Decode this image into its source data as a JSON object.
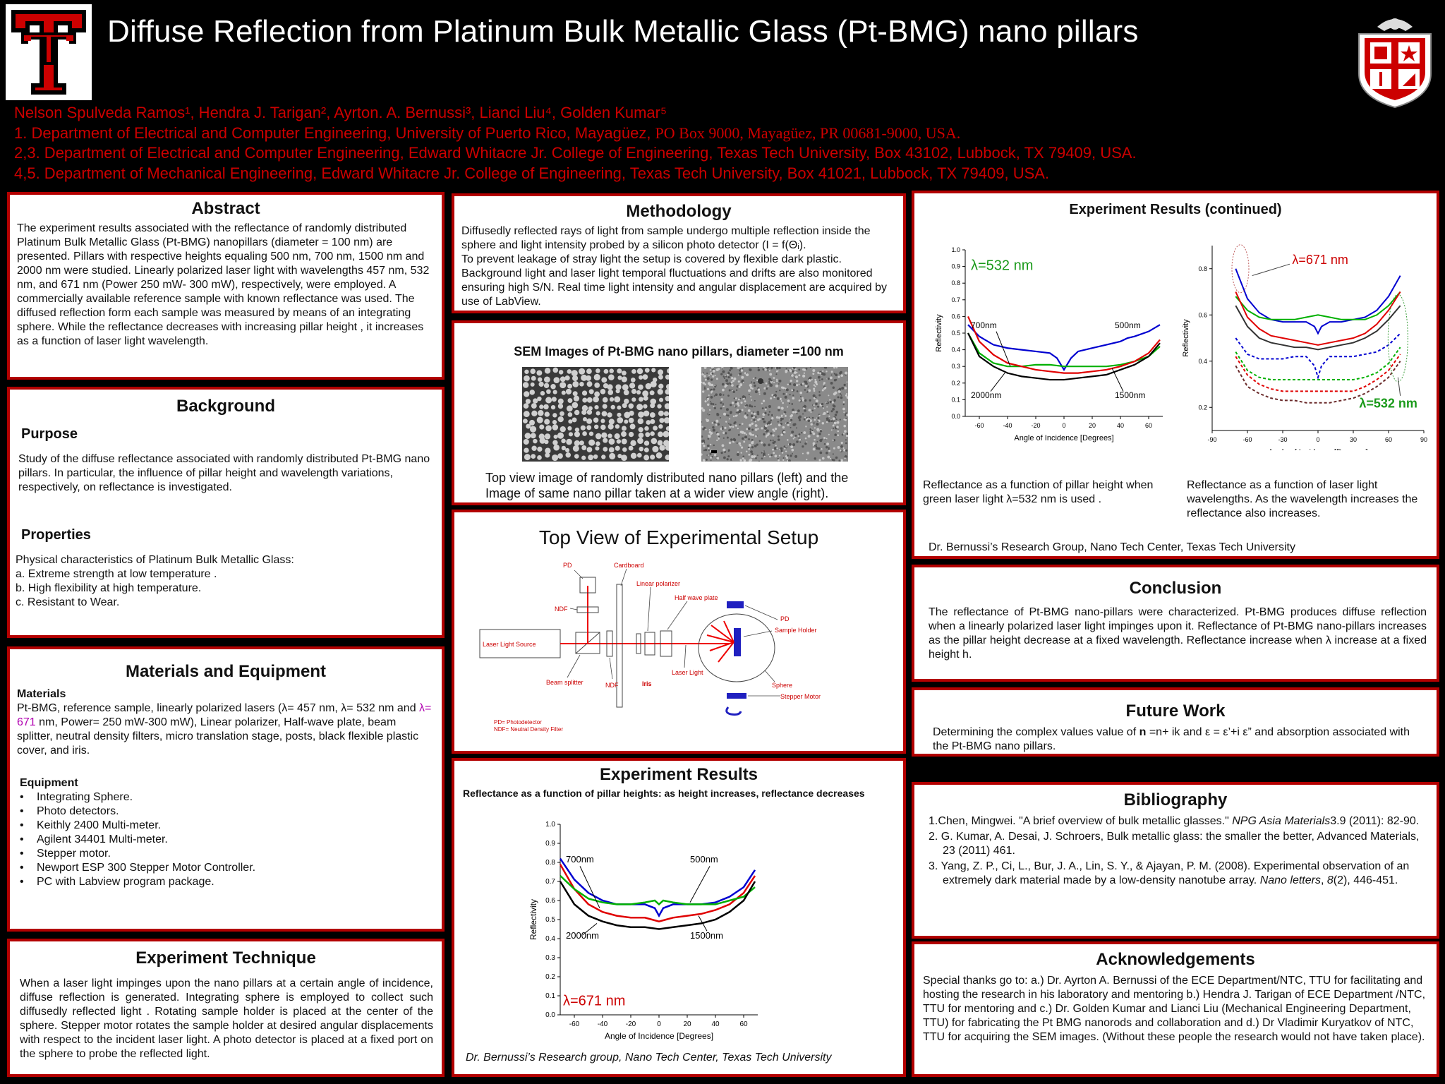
{
  "header": {
    "title": "Diffuse Reflection from Platinum Bulk Metallic Glass (Pt-BMG) nano pillars",
    "authors": "Nelson Spulveda Ramos¹,  Hendra  J. Tarigan², Ayrton. A. Bernussi³, Lianci Liu⁴, Golden Kumar⁵",
    "aff1a": "1. Department of Electrical and Computer Engineering, University of Puerto Rico, Mayagüez, ",
    "aff1b": "PO Box 9000, Mayagüez, PR 00681-9000, USA.",
    "aff2": "2,3.  Department of Electrical and Computer Engineering, Edward Whitacre  Jr. College of Engineering, Texas Tech University, Box  43102, Lubbock, TX 79409, USA.",
    "aff3": "4,5. Department of Mechanical Engineering, Edward Whitacre Jr. College of Engineering, Texas Tech University,  Box 41021, Lubbock, TX 79409, USA."
  },
  "abstract": {
    "title": "Abstract",
    "text": "The experiment results associated with the reflectance of randomly distributed Platinum Bulk Metallic Glass (Pt-BMG) nanopillars (diameter = 100 nm) are presented. Pillars with respective heights equaling 500 nm, 700 nm, 1500 nm and 2000 nm were studied. Linearly polarized laser light with wavelengths 457 nm, 532 nm, and 671 nm (Power 250 mW- 300 mW), respectively, were employed.  A  commercially available reference sample with known reflectance was used.  The diffused  reflection form  each sample was measured by means of an integrating sphere. While the reflectance decreases with increasing pillar height , it increases as a function of laser light wavelength."
  },
  "background": {
    "title": "Background",
    "purpose_head": "Purpose",
    "purpose_text": "Study of the diffuse reflectance  associated with randomly distributed Pt-BMG nano pillars. In particular, the influence of  pillar height and wavelength variations, respectively, on reflectance is investigated.",
    "properties_head": "Properties",
    "properties_lines": [
      "Physical characteristics of Platinum Bulk Metallic Glass:",
      "a. Extreme strength at low temperature .",
      "b. High flexibility at high temperature.",
      "c. Resistant to Wear."
    ]
  },
  "materials": {
    "title": "Materials and Equipment",
    "materials_head": "Materials",
    "materials_text_a": "Pt-BMG, reference sample, linearly polarized lasers (λ= 457 nm, λ= 532 nm and ",
    "materials_text_b": "λ= 671",
    "materials_text_c": " nm, Power= 250 mW-300 mW), Linear polarizer, Half-wave plate, beam splitter, neutral density filters, micro translation stage, posts, black flexible plastic cover, and iris.",
    "equipment_head": "Equipment",
    "equipment": [
      "Integrating Sphere.",
      "Photo detectors.",
      "Keithly 2400 Multi-meter.",
      "Agilent 34401 Multi-meter.",
      "Stepper motor.",
      "Newport ESP 300 Stepper Motor Controller.",
      "PC with Labview program package."
    ]
  },
  "technique": {
    "title": "Experiment Technique",
    "text": "When a laser light impinges upon the nano pillars at a certain angle of incidence, diffuse reflection  is generated. Integrating sphere is employed to collect  such diffusedly reflected light . Rotating sample holder is placed at the center of the sphere. Stepper motor rotates the sample holder at desired angular displacements with respect to the incident  laser light. A photo detector  is placed at a fixed port on the sphere to probe the reflected light."
  },
  "methodology": {
    "title": "Methodology",
    "lines": [
      "Diffusedly reflected rays of light from sample undergo multiple reflection inside the sphere and light intensity  probed by a silicon photo detector (I = f(Θᵢ).",
      "To prevent leakage of stray light the setup is covered by flexible dark plastic.",
      "Background light and laser light temporal fluctuations and drifts are also monitored ensuring high S/N. Real time light intensity and angular displacement are acquired by use of LabView."
    ]
  },
  "sem": {
    "title": "SEM Images of Pt-BMG nano pillars, diameter =100 nm",
    "caption": "Top view image of randomly distributed nano pillars (left) and the Image of same nano pillar taken at a wider view angle (right)."
  },
  "setup": {
    "title": "Top View of Experimental Setup",
    "labels": {
      "pd1": "PD",
      "cardboard": "Cardboard",
      "linear_polarizer": "Linear polarizer",
      "half_wave": "Half wave plate",
      "pd2": "PD",
      "sample_holder": "Sample Holder",
      "ndf1": "NDF",
      "laser_source": "Laser  Light Source",
      "laser_light": "Laser Light",
      "iris": "Iris",
      "sphere": "Sphere",
      "beam_splitter": "Beam splitter",
      "ndf2": "NDF",
      "stepper": "Stepper Motor",
      "legend1": "PD= Photodetector",
      "legend2": "NDF= Neutral Density Filter"
    }
  },
  "results": {
    "title": "Experiment Results",
    "subtitle": "Reflectance as a function of pillar heights: as height increases, reflectance decreases",
    "credit": "Dr. Bernussi’s Research group, Nano Tech Center, Texas Tech University"
  },
  "results2": {
    "title": "Experiment Results (continued)",
    "caption_left": "Reflectance as a function of pillar height when green laser light  λ=532 nm is used .",
    "caption_right": "Reflectance as a function of laser light wavelengths. As the wavelength increases the reflectance also increases.",
    "credit": "Dr. Bernussi’s Research Group, Nano Tech Center,  Texas Tech University"
  },
  "conclusion": {
    "title": "Conclusion",
    "text": "The reflectance of Pt-BMG nano-pillars were characterized. Pt-BMG produces diffuse reflection when a linearly polarized laser light impinges upon it. Reflectance of Pt-BMG nano-pillars increases as the pillar height decrease at a fixed wavelength. Reflectance increase when λ increase at a fixed height h."
  },
  "future": {
    "title": "Future Work",
    "text_a": "Determining the complex values value of ",
    "text_b": "n",
    "text_c": " =n+ ik  and ε = ε’+i ε” and absorption associated with the Pt-BMG nano pillars."
  },
  "bibliography": {
    "title": "Bibliography",
    "b1a": "1.Chen, Mingwei. \"A brief overview of bulk metallic glasses.\" ",
    "b1b": "NPG Asia Materials",
    "b1c": "3.9 (2011): 82-90.",
    "b2": "2. G. Kumar, A. Desai, J. Schroers, Bulk metallic glass: the smaller the better, Advanced Materials, 23 (2011) 461.",
    "b3a": "3. Yang, Z. P., Ci, L., Bur, J. A., Lin, S. Y., & Ajayan, P. M. (2008). Experimental observation of an extremely dark material made by a low-density nanotube array. ",
    "b3b": "Nano letters",
    "b3c": ", ",
    "b3d": "8",
    "b3e": "(2), 446-451."
  },
  "acknowledgements": {
    "title": "Acknowledgements",
    "text": "Special thanks go to: a.) Dr. Ayrton A. Bernussi of the ECE Department/NTC, TTU for facilitating and hosting the research  in his laboratory and mentoring b.) Hendra J. Tarigan of ECE Department /NTC, TTU  for mentoring and c.) Dr. Golden Kumar and Lianci Liu (Mechanical Engineering Department, TTU) for fabricating the Pt BMG nanorods and collaboration and d.) Dr Vladimir Kuryatkov of NTC, TTU for acquiring the SEM images. (Without these people the research would not have taken place)."
  },
  "chart_data": [
    {
      "type": "line",
      "id": "results-671",
      "annotation": "λ=671 nm",
      "xlabel": "Angle of Incidence [Degrees]",
      "ylabel": "Reflectivity",
      "xlim": [
        -70,
        70
      ],
      "ylim": [
        0.0,
        1.0
      ],
      "xticks": [
        -60,
        -40,
        -20,
        0,
        20,
        40,
        60
      ],
      "yticks": [
        0.0,
        0.1,
        0.2,
        0.3,
        0.4,
        0.5,
        0.6,
        0.7,
        0.8,
        0.9,
        1.0
      ],
      "series": [
        {
          "name": "700nm",
          "color": "#e00000",
          "x": [
            -70,
            -60,
            -50,
            -40,
            -30,
            -20,
            -10,
            -5,
            0,
            5,
            10,
            20,
            30,
            40,
            50,
            60,
            68
          ],
          "y": [
            0.79,
            0.66,
            0.58,
            0.54,
            0.52,
            0.51,
            0.51,
            0.5,
            0.49,
            0.5,
            0.51,
            0.52,
            0.53,
            0.55,
            0.58,
            0.64,
            0.73
          ]
        },
        {
          "name": "500nm",
          "color": "#0000d0",
          "x": [
            -70,
            -60,
            -50,
            -40,
            -30,
            -20,
            -10,
            -3,
            0,
            3,
            10,
            20,
            30,
            40,
            50,
            60,
            68
          ],
          "y": [
            0.82,
            0.71,
            0.64,
            0.6,
            0.58,
            0.58,
            0.58,
            0.56,
            0.52,
            0.56,
            0.58,
            0.58,
            0.58,
            0.59,
            0.62,
            0.67,
            0.76
          ]
        },
        {
          "name": "",
          "color": "#00b000",
          "x": [
            -70,
            -60,
            -50,
            -40,
            -30,
            -20,
            -10,
            -3,
            0,
            3,
            10,
            20,
            30,
            40,
            50,
            60,
            68
          ],
          "y": [
            0.73,
            0.66,
            0.61,
            0.59,
            0.58,
            0.58,
            0.59,
            0.6,
            0.58,
            0.6,
            0.59,
            0.58,
            0.58,
            0.58,
            0.6,
            0.62,
            0.67
          ]
        },
        {
          "name": "2000nm",
          "color": "#000000",
          "x": [
            -70,
            -60,
            -50,
            -40,
            -30,
            -20,
            -10,
            0,
            10,
            20,
            30,
            40,
            50,
            60,
            68
          ],
          "y": [
            0.7,
            0.58,
            0.52,
            0.49,
            0.47,
            0.46,
            0.46,
            0.45,
            0.46,
            0.47,
            0.48,
            0.5,
            0.54,
            0.6,
            0.7
          ]
        }
      ],
      "labels": [
        "700nm",
        "500nm",
        "2000nm",
        "1500nm"
      ]
    },
    {
      "type": "line",
      "id": "results-532",
      "annotation": "λ=532 nm",
      "xlabel": "Angle of Incidence [Degrees]",
      "ylabel": "Reflectivity",
      "xlim": [
        -70,
        70
      ],
      "ylim": [
        0.0,
        1.0
      ],
      "xticks": [
        -60,
        -40,
        -20,
        0,
        20,
        40,
        60
      ],
      "yticks": [
        0.0,
        0.1,
        0.2,
        0.3,
        0.4,
        0.5,
        0.6,
        0.7,
        0.8,
        0.9,
        1.0
      ],
      "series": [
        {
          "name": "500nm",
          "color": "#0000d0",
          "x": [
            -68,
            -60,
            -50,
            -40,
            -30,
            -20,
            -10,
            -5,
            0,
            5,
            10,
            20,
            30,
            40,
            45,
            50,
            60,
            68
          ],
          "y": [
            0.55,
            0.48,
            0.43,
            0.41,
            0.4,
            0.39,
            0.38,
            0.35,
            0.28,
            0.35,
            0.39,
            0.41,
            0.43,
            0.45,
            0.47,
            0.48,
            0.51,
            0.55
          ]
        },
        {
          "name": "700nm",
          "color": "#00b000",
          "x": [
            -68,
            -60,
            -50,
            -40,
            -30,
            -20,
            -10,
            0,
            10,
            20,
            30,
            40,
            50,
            60,
            68
          ],
          "y": [
            0.5,
            0.38,
            0.32,
            0.3,
            0.3,
            0.31,
            0.31,
            0.3,
            0.3,
            0.3,
            0.3,
            0.31,
            0.33,
            0.36,
            0.42
          ]
        },
        {
          "name": "1500nm",
          "color": "#e00000",
          "x": [
            -68,
            -60,
            -50,
            -40,
            -30,
            -20,
            -10,
            0,
            10,
            20,
            30,
            40,
            50,
            60,
            68
          ],
          "y": [
            0.6,
            0.45,
            0.37,
            0.32,
            0.3,
            0.28,
            0.27,
            0.26,
            0.26,
            0.27,
            0.28,
            0.3,
            0.33,
            0.38,
            0.46
          ]
        },
        {
          "name": "2000nm",
          "color": "#000000",
          "x": [
            -68,
            -60,
            -50,
            -40,
            -30,
            -20,
            -10,
            0,
            10,
            20,
            30,
            40,
            50,
            60,
            68
          ],
          "y": [
            0.5,
            0.36,
            0.3,
            0.26,
            0.24,
            0.23,
            0.22,
            0.22,
            0.23,
            0.24,
            0.25,
            0.28,
            0.31,
            0.36,
            0.44
          ]
        }
      ],
      "labels": [
        "700nm",
        "500nm",
        "2000nm",
        "1500nm"
      ]
    },
    {
      "type": "line",
      "id": "results-wavelength",
      "annotations": [
        "λ=671 nm",
        "λ=532 nm"
      ],
      "xlabel": "Angle of Incidence [Degrees]",
      "ylabel": "Reflectivity",
      "xlim": [
        -90,
        90
      ],
      "ylim": [
        0.1,
        0.9
      ],
      "xticks": [
        -90,
        -60,
        -30,
        0,
        30,
        60,
        90
      ],
      "yticks": [
        0.2,
        0.4,
        0.6,
        0.8
      ],
      "series": [
        {
          "name": "",
          "color": "#0000d0",
          "dash": false,
          "x": [
            -70,
            -60,
            -50,
            -40,
            -30,
            -20,
            -10,
            -3,
            0,
            3,
            10,
            20,
            30,
            40,
            50,
            60,
            70
          ],
          "y": [
            0.8,
            0.67,
            0.61,
            0.58,
            0.57,
            0.57,
            0.57,
            0.55,
            0.52,
            0.55,
            0.57,
            0.57,
            0.58,
            0.59,
            0.62,
            0.68,
            0.77
          ]
        },
        {
          "name": "",
          "color": "#00b000",
          "dash": false,
          "x": [
            -70,
            -60,
            -50,
            -40,
            -30,
            -20,
            -10,
            0,
            10,
            20,
            30,
            40,
            50,
            60,
            70
          ],
          "y": [
            0.68,
            0.62,
            0.59,
            0.58,
            0.58,
            0.58,
            0.59,
            0.6,
            0.59,
            0.58,
            0.58,
            0.58,
            0.6,
            0.64,
            0.7
          ]
        },
        {
          "name": "",
          "color": "#e00000",
          "dash": false,
          "x": [
            -70,
            -60,
            -50,
            -40,
            -30,
            -20,
            -10,
            0,
            10,
            20,
            30,
            40,
            50,
            60,
            70
          ],
          "y": [
            0.7,
            0.59,
            0.54,
            0.51,
            0.5,
            0.49,
            0.48,
            0.47,
            0.48,
            0.49,
            0.5,
            0.52,
            0.56,
            0.62,
            0.7
          ]
        },
        {
          "name": "",
          "color": "#333333",
          "dash": false,
          "x": [
            -70,
            -60,
            -50,
            -40,
            -30,
            -20,
            -10,
            0,
            10,
            20,
            30,
            40,
            50,
            60,
            70
          ],
          "y": [
            0.64,
            0.55,
            0.5,
            0.48,
            0.47,
            0.46,
            0.46,
            0.45,
            0.46,
            0.47,
            0.48,
            0.5,
            0.53,
            0.58,
            0.64
          ]
        },
        {
          "name": "",
          "color": "#0000d0",
          "dash": true,
          "x": [
            -70,
            -60,
            -50,
            -40,
            -30,
            -20,
            -10,
            -3,
            0,
            3,
            10,
            20,
            30,
            40,
            50,
            60,
            70
          ],
          "y": [
            0.5,
            0.43,
            0.41,
            0.41,
            0.41,
            0.42,
            0.42,
            0.38,
            0.33,
            0.38,
            0.42,
            0.42,
            0.42,
            0.43,
            0.44,
            0.47,
            0.52
          ]
        },
        {
          "name": "",
          "color": "#00b000",
          "dash": true,
          "x": [
            -70,
            -60,
            -50,
            -40,
            -30,
            -20,
            -10,
            0,
            10,
            20,
            30,
            40,
            50,
            60,
            70
          ],
          "y": [
            0.44,
            0.36,
            0.33,
            0.32,
            0.32,
            0.32,
            0.32,
            0.32,
            0.32,
            0.32,
            0.32,
            0.33,
            0.35,
            0.39,
            0.46
          ]
        },
        {
          "name": "",
          "color": "#e00000",
          "dash": true,
          "x": [
            -70,
            -60,
            -50,
            -40,
            -30,
            -20,
            -10,
            0,
            10,
            20,
            30,
            40,
            50,
            60,
            70
          ],
          "y": [
            0.42,
            0.34,
            0.3,
            0.28,
            0.27,
            0.27,
            0.27,
            0.27,
            0.27,
            0.27,
            0.27,
            0.29,
            0.32,
            0.36,
            0.43
          ]
        },
        {
          "name": "",
          "color": "#6a2a2a",
          "dash": true,
          "x": [
            -70,
            -60,
            -50,
            -40,
            -30,
            -20,
            -10,
            0,
            10,
            20,
            30,
            40,
            50,
            60,
            70
          ],
          "y": [
            0.38,
            0.29,
            0.26,
            0.24,
            0.23,
            0.23,
            0.22,
            0.22,
            0.22,
            0.23,
            0.24,
            0.26,
            0.29,
            0.33,
            0.4
          ]
        }
      ]
    }
  ]
}
